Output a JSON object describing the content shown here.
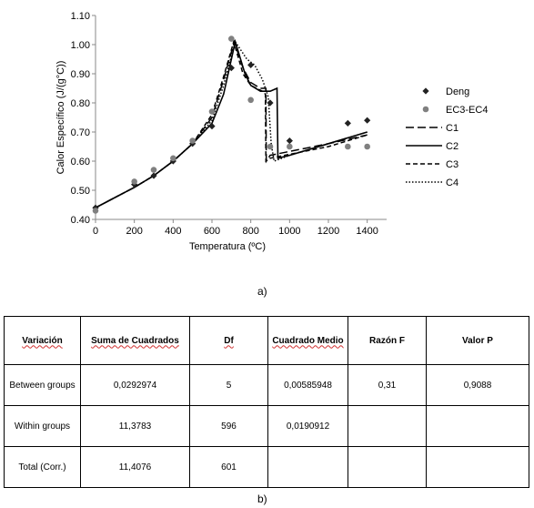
{
  "chart_data": {
    "type": "scatter",
    "title": "",
    "xlabel": "Temperatura (ºC)",
    "ylabel": "Calor Específico (J/(g°C))",
    "xlim": [
      0,
      1500
    ],
    "ylim": [
      0.4,
      1.1
    ],
    "x_ticks": [
      "0",
      "200",
      "400",
      "600",
      "800",
      "1000",
      "1200",
      "1400"
    ],
    "x_tick_values": [
      0,
      200,
      400,
      600,
      800,
      1000,
      1200,
      1400
    ],
    "y_ticks": [
      "0.40",
      "0.50",
      "0.60",
      "0.70",
      "0.80",
      "0.90",
      "1.00",
      "1.10"
    ],
    "y_tick_values": [
      0.4,
      0.5,
      0.6,
      0.7,
      0.8,
      0.9,
      1.0,
      1.1
    ],
    "grid": false,
    "legend_position": "right",
    "series": [
      {
        "name": "Deng",
        "kind": "marker-diamond",
        "color": "#222222",
        "points": [
          [
            0,
            0.44
          ],
          [
            200,
            0.52
          ],
          [
            300,
            0.55
          ],
          [
            400,
            0.6
          ],
          [
            500,
            0.66
          ],
          [
            600,
            0.72
          ],
          [
            700,
            0.92
          ],
          [
            800,
            0.93
          ],
          [
            900,
            0.8
          ],
          [
            1000,
            0.67
          ],
          [
            1300,
            0.73
          ],
          [
            1400,
            0.74
          ]
        ]
      },
      {
        "name": "EC3-EC4",
        "kind": "marker-circle",
        "color": "#808080",
        "points": [
          [
            0,
            0.43
          ],
          [
            200,
            0.53
          ],
          [
            300,
            0.57
          ],
          [
            400,
            0.61
          ],
          [
            500,
            0.67
          ],
          [
            600,
            0.77
          ],
          [
            700,
            1.02
          ],
          [
            800,
            0.81
          ],
          [
            900,
            0.65
          ],
          [
            1000,
            0.65
          ],
          [
            1300,
            0.65
          ],
          [
            1400,
            0.65
          ]
        ]
      },
      {
        "name": "C1",
        "kind": "line-longdash",
        "color": "#000000",
        "points": [
          [
            0,
            0.44
          ],
          [
            100,
            0.475
          ],
          [
            200,
            0.51
          ],
          [
            300,
            0.55
          ],
          [
            400,
            0.6
          ],
          [
            500,
            0.66
          ],
          [
            600,
            0.75
          ],
          [
            660,
            0.88
          ],
          [
            715,
            1.01
          ],
          [
            760,
            0.92
          ],
          [
            800,
            0.87
          ],
          [
            850,
            0.85
          ],
          [
            878,
            0.85
          ],
          [
            880,
            0.6
          ],
          [
            900,
            0.62
          ],
          [
            1200,
            0.66
          ],
          [
            1400,
            0.69
          ]
        ]
      },
      {
        "name": "C2",
        "kind": "line-solid",
        "color": "#000000",
        "points": [
          [
            0,
            0.44
          ],
          [
            100,
            0.475
          ],
          [
            200,
            0.51
          ],
          [
            300,
            0.55
          ],
          [
            400,
            0.6
          ],
          [
            500,
            0.66
          ],
          [
            600,
            0.73
          ],
          [
            660,
            0.83
          ],
          [
            720,
            1.01
          ],
          [
            770,
            0.9
          ],
          [
            800,
            0.86
          ],
          [
            850,
            0.84
          ],
          [
            900,
            0.84
          ],
          [
            935,
            0.85
          ],
          [
            940,
            0.61
          ],
          [
            1000,
            0.62
          ],
          [
            1200,
            0.66
          ],
          [
            1400,
            0.7
          ]
        ]
      },
      {
        "name": "C3",
        "kind": "line-dash",
        "color": "#000000",
        "points": [
          [
            0,
            0.44
          ],
          [
            100,
            0.475
          ],
          [
            200,
            0.51
          ],
          [
            300,
            0.55
          ],
          [
            400,
            0.6
          ],
          [
            500,
            0.66
          ],
          [
            600,
            0.76
          ],
          [
            660,
            0.89
          ],
          [
            712,
            1.01
          ],
          [
            760,
            0.9
          ],
          [
            800,
            0.86
          ],
          [
            860,
            0.84
          ],
          [
            875,
            0.83
          ],
          [
            878,
            0.6
          ],
          [
            900,
            0.61
          ],
          [
            1200,
            0.65
          ],
          [
            1400,
            0.69
          ]
        ]
      },
      {
        "name": "C4",
        "kind": "line-dotted",
        "color": "#000000",
        "points": [
          [
            0,
            0.44
          ],
          [
            100,
            0.475
          ],
          [
            200,
            0.51
          ],
          [
            300,
            0.55
          ],
          [
            400,
            0.6
          ],
          [
            500,
            0.66
          ],
          [
            600,
            0.74
          ],
          [
            660,
            0.86
          ],
          [
            720,
            1.01
          ],
          [
            780,
            0.95
          ],
          [
            820,
            0.93
          ],
          [
            860,
            0.88
          ],
          [
            890,
            0.82
          ],
          [
            905,
            0.66
          ],
          [
            920,
            0.6
          ],
          [
            1000,
            0.62
          ],
          [
            1200,
            0.66
          ],
          [
            1400,
            0.7
          ]
        ]
      }
    ]
  },
  "captions": {
    "a": "a)",
    "b": "b)"
  },
  "table": {
    "headers": [
      "Variación",
      "Suma de Cuadrados",
      "Df",
      "Cuadrado Medio",
      "Razón F",
      "Valor P"
    ],
    "rows": [
      [
        "Between groups",
        "0,0292974",
        "5",
        "0,00585948",
        "0,31",
        "0,9088"
      ],
      [
        "Within groups",
        "11,3783",
        "596",
        "0,0190912",
        "",
        ""
      ],
      [
        "Total (Corr.)",
        "11,4076",
        "601",
        "",
        "",
        ""
      ]
    ]
  }
}
